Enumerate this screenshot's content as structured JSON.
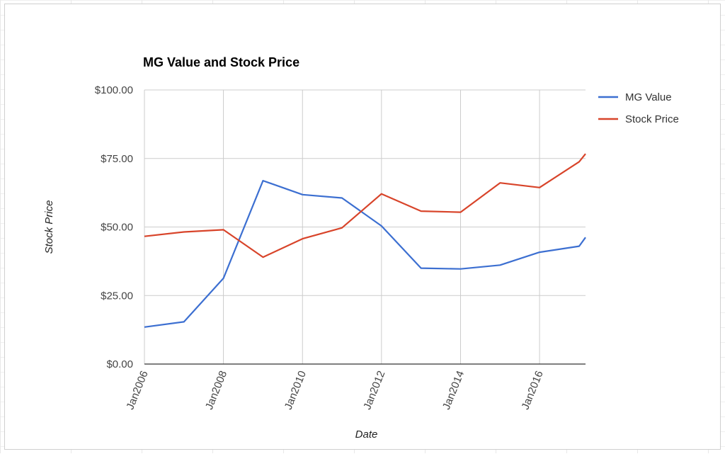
{
  "chart_data": {
    "type": "line",
    "title": "MG Value and Stock Price",
    "xlabel": "Date",
    "ylabel": "Stock Price",
    "ylim": [
      0,
      100
    ],
    "xlim": [
      "2006-01-01",
      "2017-03-01"
    ],
    "y_ticks": [
      "$0.00",
      "$25.00",
      "$50.00",
      "$75.00",
      "$100.00"
    ],
    "y_tick_values": [
      0,
      25,
      50,
      75,
      100
    ],
    "x_ticks": [
      "Jan2006",
      "Jan2008",
      "Jan2010",
      "Jan2012",
      "Jan2014",
      "Jan2016"
    ],
    "x_tick_values": [
      "2006-01-01",
      "2008-01-01",
      "2010-01-01",
      "2012-01-01",
      "2014-01-01",
      "2016-01-01"
    ],
    "grid": true,
    "legend_position": "right",
    "x": [
      "2006-01-01",
      "2007-01-01",
      "2008-01-01",
      "2009-01-01",
      "2010-01-01",
      "2011-01-01",
      "2012-01-01",
      "2013-01-01",
      "2014-01-01",
      "2015-01-01",
      "2016-01-01",
      "2017-01-01",
      "2017-03-01"
    ],
    "series": [
      {
        "name": "MG Value",
        "color": "#3c6fd1",
        "values": [
          13.5,
          15.4,
          31.3,
          66.9,
          61.8,
          60.6,
          50.4,
          35.0,
          34.7,
          36.1,
          40.8,
          43.0,
          46.2
        ]
      },
      {
        "name": "Stock Price",
        "color": "#d8442a",
        "values": [
          46.6,
          48.2,
          49.0,
          39.0,
          45.7,
          49.7,
          62.1,
          55.8,
          55.4,
          66.1,
          64.4,
          73.8,
          76.7
        ]
      }
    ]
  }
}
